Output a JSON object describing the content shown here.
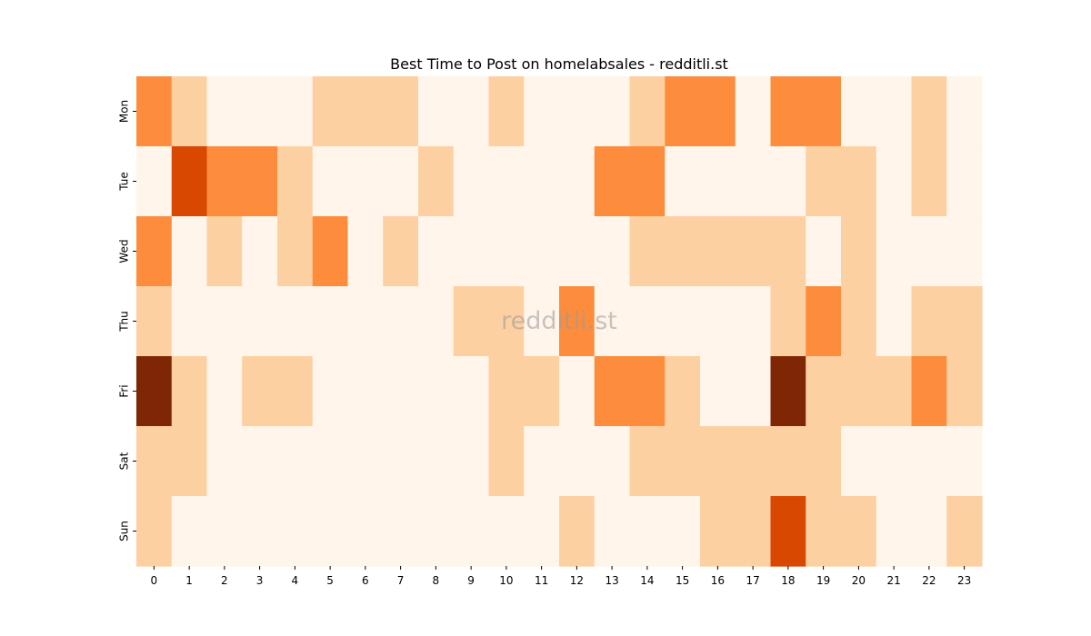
{
  "chart_data": {
    "type": "heatmap",
    "title": "Best Time to Post on homelabsales - redditli.st",
    "watermark": "redditli.st",
    "x_labels": [
      "0",
      "1",
      "2",
      "3",
      "4",
      "5",
      "6",
      "7",
      "8",
      "9",
      "10",
      "11",
      "12",
      "13",
      "14",
      "15",
      "16",
      "17",
      "18",
      "19",
      "20",
      "21",
      "22",
      "23"
    ],
    "y_labels": [
      "Mon",
      "Tue",
      "Wed",
      "Thu",
      "Fri",
      "Sat",
      "Sun"
    ],
    "values": [
      [
        2,
        1,
        0,
        0,
        0,
        1,
        1,
        1,
        0,
        0,
        1,
        0,
        0,
        0,
        1,
        2,
        2,
        0,
        2,
        2,
        0,
        0,
        1,
        0
      ],
      [
        0,
        3,
        2,
        2,
        1,
        0,
        0,
        0,
        1,
        0,
        0,
        0,
        0,
        2,
        2,
        0,
        0,
        0,
        0,
        1,
        1,
        0,
        1,
        0
      ],
      [
        2,
        0,
        1,
        0,
        1,
        2,
        0,
        1,
        0,
        0,
        0,
        0,
        0,
        0,
        1,
        1,
        1,
        1,
        1,
        0,
        1,
        0,
        0,
        0
      ],
      [
        1,
        0,
        0,
        0,
        0,
        0,
        0,
        0,
        0,
        1,
        1,
        0,
        2,
        0,
        0,
        0,
        0,
        0,
        1,
        2,
        1,
        0,
        1,
        1
      ],
      [
        4,
        1,
        0,
        1,
        1,
        0,
        0,
        0,
        0,
        0,
        1,
        1,
        0,
        2,
        2,
        1,
        0,
        0,
        4,
        1,
        1,
        1,
        2,
        1
      ],
      [
        1,
        1,
        0,
        0,
        0,
        0,
        0,
        0,
        0,
        0,
        1,
        0,
        0,
        0,
        1,
        1,
        1,
        1,
        1,
        1,
        0,
        0,
        0,
        0
      ],
      [
        1,
        0,
        0,
        0,
        0,
        0,
        0,
        0,
        0,
        0,
        0,
        0,
        1,
        0,
        0,
        0,
        1,
        1,
        3,
        1,
        1,
        0,
        0,
        1
      ]
    ],
    "colormap": "Oranges",
    "color_levels": [
      "#fff5eb",
      "#fdd0a2",
      "#fd8d3c",
      "#d94801",
      "#7f2704"
    ],
    "legend": "none"
  }
}
